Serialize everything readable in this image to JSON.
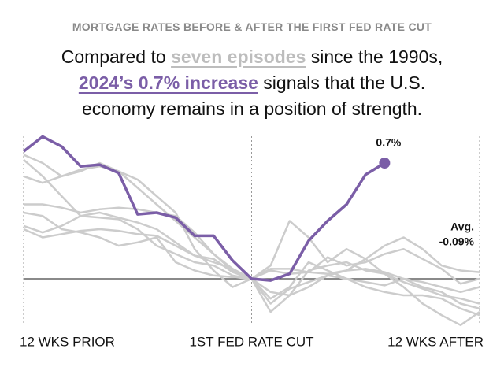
{
  "chart_data": {
    "type": "line",
    "title": "MORTGAGE RATES BEFORE & AFTER THE FIRST FED RATE CUT",
    "subtitle_parts": [
      "Compared to ",
      "seven episodes",
      " since the 1990s, ",
      "2024’s 0.7% increase",
      " signals that the U.S. economy remains in a position of strength."
    ],
    "x": [
      -12,
      -11,
      -10,
      -9,
      -8,
      -7,
      -6,
      -5,
      -4,
      -3,
      -2,
      -1,
      0,
      1,
      2,
      3,
      4,
      5,
      6,
      7,
      8,
      9,
      10,
      11,
      12
    ],
    "xlim": [
      -12,
      12
    ],
    "xticks": [
      {
        "value": -12,
        "label": "12 WKS PRIOR"
      },
      {
        "value": 0,
        "label": "1ST FED RATE CUT"
      },
      {
        "value": 12,
        "label": "12 WKS AFTER"
      }
    ],
    "ylim": [
      -0.3,
      0.9
    ],
    "series": [
      {
        "color": "#cccccc",
        "values": [
          0.75,
          0.7,
          0.62,
          0.66,
          0.68,
          0.65,
          0.55,
          0.45,
          0.35,
          0.25,
          0.15,
          0.06,
          0,
          -0.2,
          -0.1,
          0.05,
          0.08,
          0.1,
          0.05,
          0.03,
          -0.02,
          -0.06,
          -0.1,
          -0.12,
          -0.15
        ]
      },
      {
        "color": "#cccccc",
        "values": [
          0.72,
          0.62,
          0.5,
          0.38,
          0.37,
          0.36,
          0.3,
          0.2,
          0.15,
          0.1,
          0.08,
          0.02,
          0,
          -0.08,
          -0.1,
          -0.05,
          0.02,
          0.05,
          0.06,
          0.04,
          0.0,
          -0.05,
          -0.08,
          -0.15,
          -0.18
        ]
      },
      {
        "color": "#cccccc",
        "values": [
          0.45,
          0.45,
          0.43,
          0.4,
          0.42,
          0.43,
          0.42,
          0.4,
          0.38,
          0.28,
          0.15,
          0.05,
          0,
          0.08,
          0.35,
          0.25,
          0.1,
          0.18,
          0.12,
          0.03,
          -0.05,
          -0.15,
          -0.22,
          -0.28,
          -0.2
        ]
      },
      {
        "color": "#cccccc",
        "values": [
          0.32,
          0.28,
          0.32,
          0.38,
          0.4,
          0.37,
          0.34,
          0.3,
          0.22,
          0.14,
          0.1,
          0.06,
          0,
          -0.12,
          -0.05,
          0.1,
          0.05,
          0.0,
          -0.02,
          -0.04,
          0.0,
          -0.02,
          -0.05,
          -0.08,
          -0.05
        ]
      },
      {
        "color": "#cccccc",
        "values": [
          0.3,
          0.25,
          0.27,
          0.29,
          0.3,
          0.29,
          0.27,
          0.26,
          0.2,
          0.14,
          0.12,
          0.04,
          0,
          0.06,
          0.06,
          0.04,
          0.03,
          0.05,
          0.12,
          0.2,
          0.25,
          0.18,
          0.08,
          0.05,
          0.04
        ]
      },
      {
        "color": "#cccccc",
        "values": [
          0.4,
          0.38,
          0.3,
          0.28,
          0.25,
          0.2,
          0.22,
          0.25,
          0.1,
          0.05,
          0.02,
          0.01,
          0,
          0.05,
          0.03,
          0.04,
          0.13,
          0.08,
          0.1,
          0.15,
          0.18,
          0.12,
          0.06,
          -0.03,
          0.0
        ]
      },
      {
        "color": "#cccccc",
        "values": [
          0.62,
          0.58,
          0.62,
          0.65,
          0.7,
          0.65,
          0.6,
          0.5,
          0.4,
          0.18,
          0.05,
          -0.05,
          0,
          -0.15,
          -0.06,
          -0.02,
          0.02,
          0.0,
          -0.05,
          -0.08,
          -0.1,
          -0.1,
          -0.12,
          -0.18,
          -0.22
        ]
      },
      {
        "color": "#7b5ea7",
        "values": [
          0.77,
          0.86,
          0.8,
          0.68,
          0.69,
          0.64,
          0.39,
          0.4,
          0.37,
          0.26,
          0.26,
          0.11,
          0,
          -0.01,
          0.03,
          0.23,
          0.35,
          0.45,
          0.63,
          0.7,
          null,
          null,
          null,
          null,
          null
        ],
        "value_labels": [
          null,
          null,
          null,
          null,
          null,
          null,
          null,
          null,
          null,
          null,
          null,
          null,
          null,
          null,
          null,
          null,
          null,
          null,
          null,
          "0.7%",
          null,
          null,
          null,
          null,
          null
        ]
      }
    ],
    "average": {
      "title": "Avg.",
      "value": -0.09,
      "label": "-0.09%"
    }
  }
}
